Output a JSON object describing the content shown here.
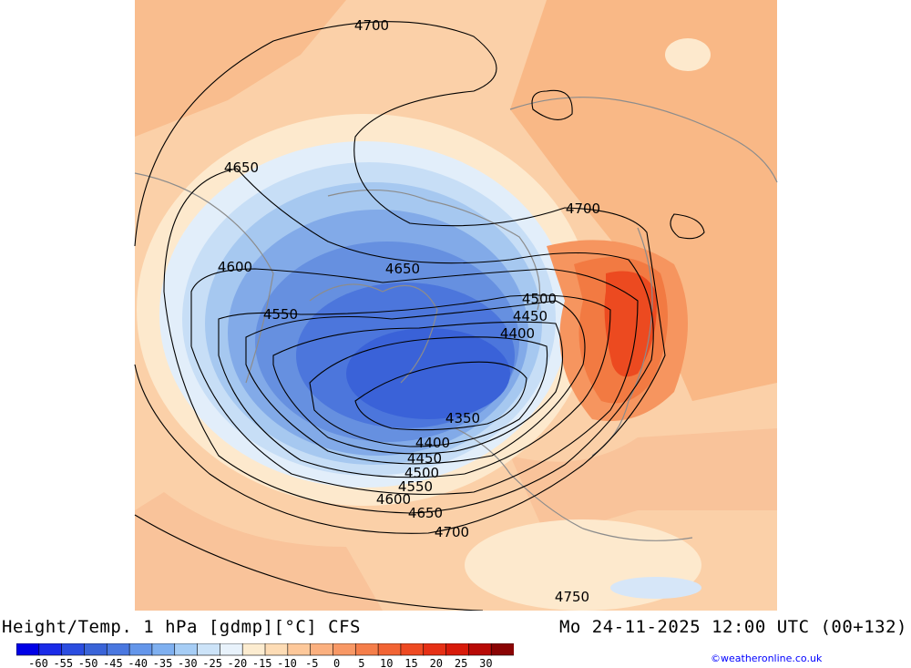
{
  "title": {
    "left": "Height/Temp. 1 hPa [gdmp][°C] CFS",
    "right": "Mo 24-11-2025 12:00 UTC (00+132)"
  },
  "credit": "©weatheronline.co.uk",
  "colorbar": {
    "colors": [
      "#0000e6",
      "#1a2be8",
      "#2b4de0",
      "#3a64d8",
      "#4a78e0",
      "#6496ea",
      "#7fb0f0",
      "#a6cdf5",
      "#cce3f8",
      "#e8f2fb",
      "#fcecd0",
      "#fddcb5",
      "#fdc89a",
      "#fbb07f",
      "#f89865",
      "#f57e4a",
      "#f26434",
      "#ee4a22",
      "#e63015",
      "#d81a0a",
      "#b80a06",
      "#8a0404"
    ],
    "labels": [
      "-60",
      "-55",
      "-50",
      "-45",
      "-40",
      "-35",
      "-30",
      "-25",
      "-20",
      "-15",
      "-10",
      "-5",
      "0",
      "5",
      "10",
      "15",
      "20",
      "25",
      "30"
    ]
  },
  "contours": [
    "4700",
    "4650",
    "4700",
    "4600",
    "4650",
    "4500",
    "4550",
    "4450",
    "4400",
    "4350",
    "4400",
    "4450",
    "4500",
    "4550",
    "4600",
    "4650",
    "4700",
    "4750"
  ]
}
